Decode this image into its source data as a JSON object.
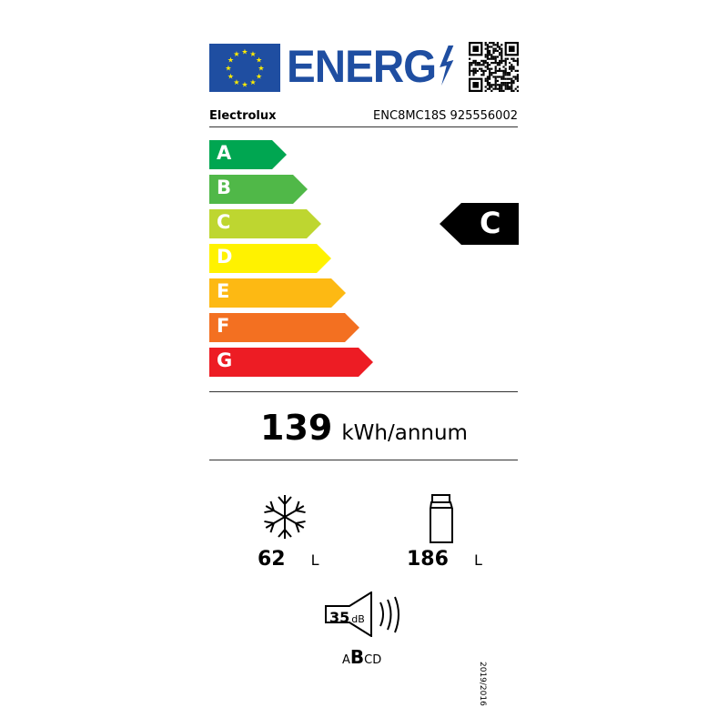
{
  "header": {
    "title": "ENERG",
    "brand": "Electrolux",
    "model": "ENC8MC18S 925556002"
  },
  "scale": {
    "classes": [
      {
        "letter": "A",
        "color": "#00a651"
      },
      {
        "letter": "B",
        "color": "#50b848"
      },
      {
        "letter": "C",
        "color": "#bed630"
      },
      {
        "letter": "D",
        "color": "#fff200"
      },
      {
        "letter": "E",
        "color": "#fdb913"
      },
      {
        "letter": "F",
        "color": "#f37021"
      },
      {
        "letter": "G",
        "color": "#ed1c24"
      }
    ],
    "rating": "C"
  },
  "consumption": {
    "value": "139",
    "unit": "kWh/annum"
  },
  "freezer": {
    "value": "62",
    "unit": "L",
    "icon": "snowflake-icon"
  },
  "fridge": {
    "value": "186",
    "unit": "L",
    "icon": "bottle-icon"
  },
  "noise": {
    "value": "35",
    "unit": "dB",
    "class_pre": "A",
    "class_sel": "B",
    "class_post": "CD",
    "icon": "speaker-icon"
  },
  "regulation": "2019/2016"
}
